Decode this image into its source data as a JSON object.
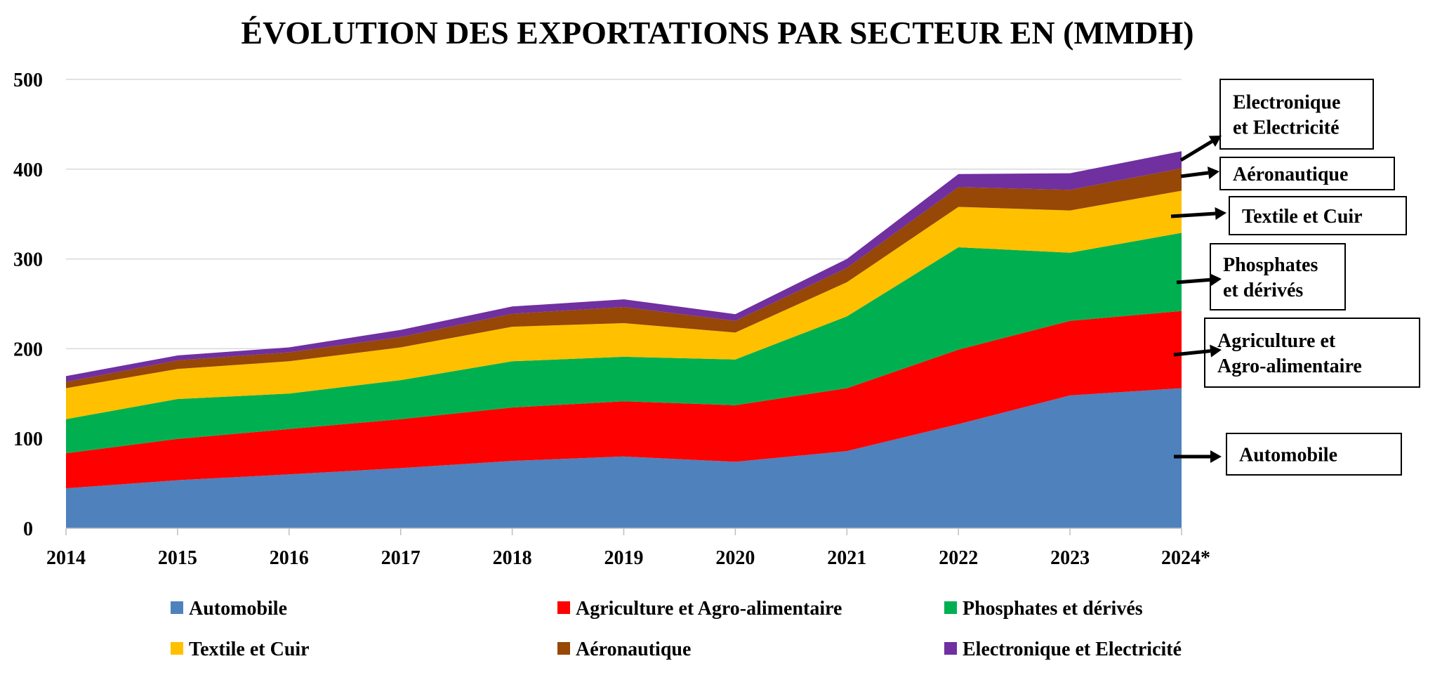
{
  "chart_data": {
    "type": "area",
    "stacked": true,
    "title": "ÉVOLUTION DES EXPORTATIONS PAR SECTEUR EN (MMDH)",
    "xlabel": "",
    "ylabel": "",
    "categories": [
      "2014",
      "2015",
      "2016",
      "2017",
      "2018",
      "2019",
      "2020",
      "2021",
      "2022",
      "2023",
      "2024*"
    ],
    "ylim": [
      0,
      500
    ],
    "yticks": [
      0,
      100,
      200,
      300,
      400,
      500
    ],
    "grid": true,
    "legend_position": "bottom",
    "series": [
      {
        "name": "Automobile",
        "color": "#4F81BD",
        "values": [
          44.5,
          53.5,
          60,
          67,
          75,
          80,
          74,
          86,
          116,
          148,
          156
        ]
      },
      {
        "name": "Agriculture et Agro-alimentaire",
        "color": "#FF0000",
        "values": [
          39,
          46,
          50.5,
          54.5,
          59.5,
          61.5,
          63,
          70,
          83,
          83,
          86
        ]
      },
      {
        "name": "Phosphates et dérivés",
        "color": "#00B050",
        "values": [
          38,
          44.5,
          39.5,
          43.5,
          51.5,
          49.5,
          51,
          80,
          114,
          76,
          87
        ]
      },
      {
        "name": "Textile et Cuir",
        "color": "#FFC000",
        "values": [
          34.5,
          33.5,
          36,
          36.5,
          38.5,
          37.5,
          30,
          38,
          45,
          47,
          47
        ]
      },
      {
        "name": "Aéronautique",
        "color": "#974706",
        "values": [
          7,
          9.5,
          10,
          11.5,
          14.5,
          18,
          13,
          16,
          22,
          23,
          25
        ]
      },
      {
        "name": "Electronique et Electricité",
        "color": "#7030A0",
        "values": [
          6.5,
          5.5,
          5.5,
          8,
          8,
          8.5,
          7.5,
          10,
          14.5,
          18.5,
          19
        ]
      }
    ],
    "annotations": [
      {
        "series": "Electronique et Electricité",
        "lines": [
          "Electronique",
          "et Electricité"
        ]
      },
      {
        "series": "Aéronautique",
        "lines": [
          "Aéronautique"
        ]
      },
      {
        "series": "Textile et Cuir",
        "lines": [
          "Textile et Cuir"
        ]
      },
      {
        "series": "Phosphates et dérivés",
        "lines": [
          "Phosphates",
          "et dérivés"
        ]
      },
      {
        "series": "Agriculture et Agro-alimentaire",
        "lines": [
          "Agriculture et",
          "Agro-alimentaire"
        ]
      },
      {
        "series": "Automobile",
        "lines": [
          "Automobile"
        ]
      }
    ],
    "legend": [
      "Automobile",
      "Agriculture et Agro-alimentaire",
      "Phosphates et dérivés",
      "Textile et Cuir",
      "Aéronautique",
      "Electronique et Electricité"
    ]
  }
}
